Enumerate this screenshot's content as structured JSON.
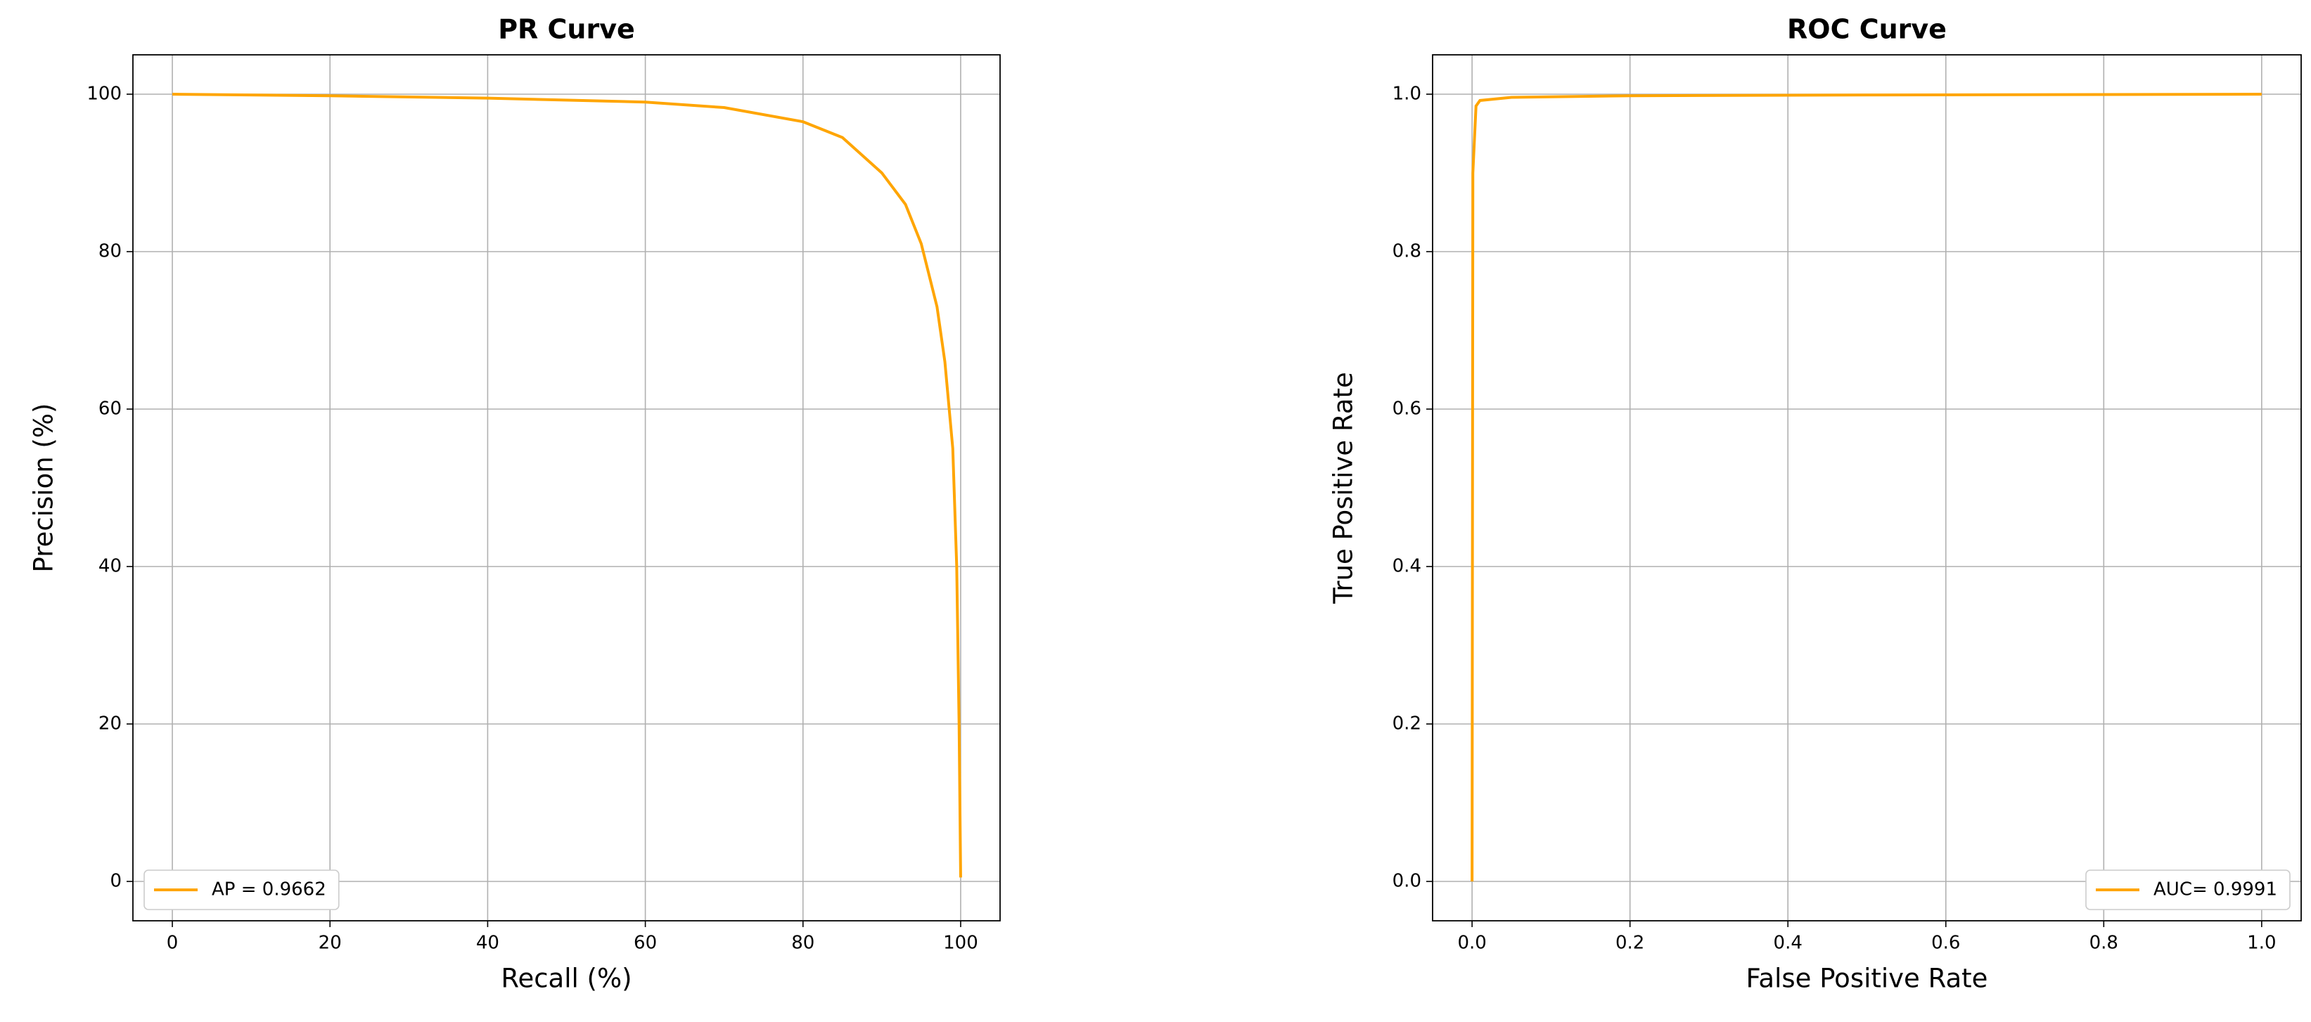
{
  "chart_data": [
    {
      "type": "line",
      "title": "PR Curve",
      "x_label": "Recall (%)",
      "y_label": "Precision (%)",
      "x": [
        0,
        20,
        40,
        60,
        70,
        80,
        85,
        90,
        93,
        95,
        97,
        98,
        99,
        99.5,
        99.8,
        100
      ],
      "series": [
        {
          "name": "AP = 0.9662",
          "color": "#ffa500",
          "values": [
            100,
            99.8,
            99.5,
            99,
            98.3,
            96.5,
            94.5,
            90,
            86,
            81,
            73,
            66,
            55,
            40,
            20,
            0.5
          ]
        }
      ],
      "xlim": [
        -5,
        105
      ],
      "ylim": [
        -5,
        105
      ],
      "xticks": [
        0,
        20,
        40,
        60,
        80,
        100
      ],
      "yticks": [
        0,
        20,
        40,
        60,
        80,
        100
      ],
      "grid": true,
      "legend_loc": "lower left"
    },
    {
      "type": "line",
      "title": "ROC Curve",
      "x_label": "False Positive Rate",
      "y_label": "True Positive Rate",
      "x": [
        0,
        0.001,
        0.005,
        0.01,
        0.05,
        0.2,
        0.5,
        1
      ],
      "series": [
        {
          "name": "AUC= 0.9991",
          "color": "#ffa500",
          "values": [
            0,
            0.9,
            0.985,
            0.992,
            0.996,
            0.998,
            0.999,
            1
          ]
        }
      ],
      "xlim": [
        -0.05,
        1.05
      ],
      "ylim": [
        -0.05,
        1.05
      ],
      "xticks": [
        {
          "value": 0,
          "label": "0.0"
        },
        {
          "value": 0.2,
          "label": "0.2"
        },
        {
          "value": 0.4,
          "label": "0.4"
        },
        {
          "value": 0.6,
          "label": "0.6"
        },
        {
          "value": 0.8,
          "label": "0.8"
        },
        {
          "value": 1,
          "label": "1.0"
        }
      ],
      "yticks": [
        {
          "value": 0,
          "label": "0.0"
        },
        {
          "value": 0.2,
          "label": "0.2"
        },
        {
          "value": 0.4,
          "label": "0.4"
        },
        {
          "value": 0.6,
          "label": "0.6"
        },
        {
          "value": 0.8,
          "label": "0.8"
        },
        {
          "value": 1,
          "label": "1.0"
        }
      ],
      "grid": true,
      "legend_loc": "lower right"
    }
  ]
}
